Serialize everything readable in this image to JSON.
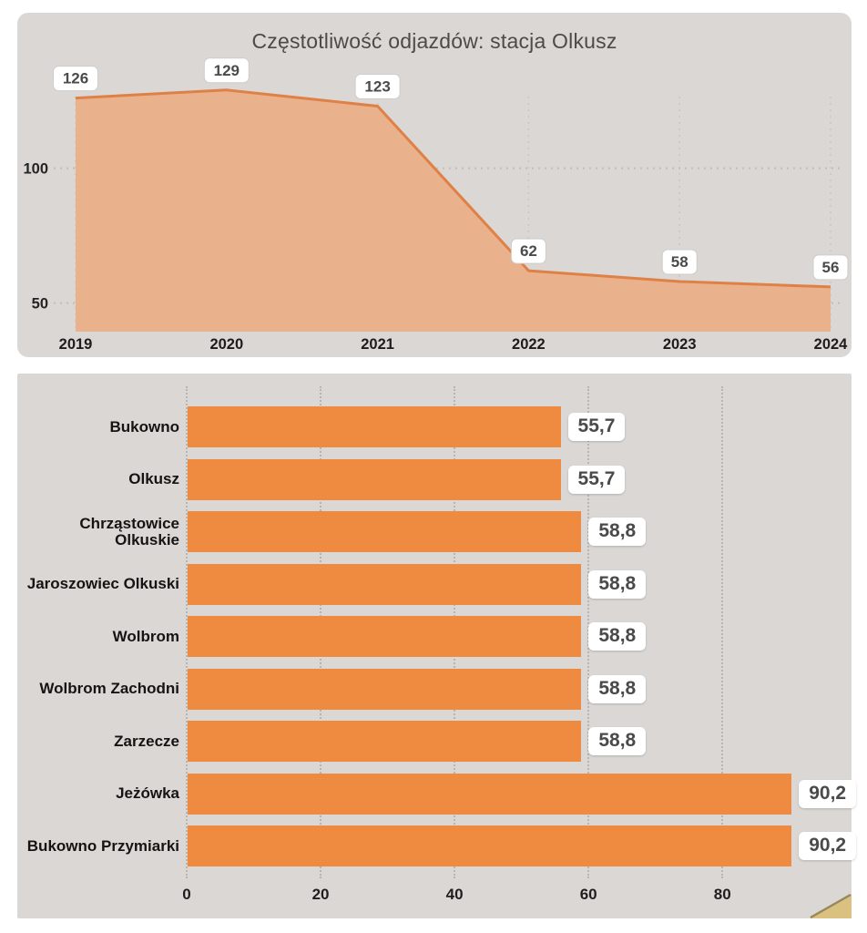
{
  "colors": {
    "panel_background": "#dad7d4",
    "bar_orange": "#ee8b40",
    "area_fill": "#e9b28d",
    "area_line": "#df8146",
    "grid_dots": "#c1bdb9",
    "label_chip_background": "#ffffff",
    "label_chip_text": "#4a4a4a",
    "axis_text": "#201e1c",
    "title_text": "#4d4a48",
    "corner_fold": "#dac17f"
  },
  "chart_data": [
    {
      "type": "area",
      "title": "Częstotliwość odjazdów: stacja Olkusz",
      "x": [
        "2019",
        "2020",
        "2021",
        "2022",
        "2023",
        "2024"
      ],
      "values": [
        126,
        129,
        123,
        62,
        58,
        56
      ],
      "data_labels": [
        "126",
        "129",
        "123",
        "62",
        "58",
        "56"
      ],
      "yticks": [
        50,
        100
      ],
      "ylim": [
        39.4,
        139.4
      ],
      "grid": true,
      "legend": "none",
      "xlabel": "",
      "ylabel": ""
    },
    {
      "type": "bar",
      "orientation": "horizontal",
      "categories": [
        "Bukowno",
        "Olkusz",
        "Chrząstowice Olkuskie",
        "Jaroszowiec Olkuski",
        "Wolbrom",
        "Wolbrom Zachodni",
        "Zarzecze",
        "Jeżówka",
        "Bukowno Przymiarki"
      ],
      "values": [
        55.7,
        55.7,
        58.8,
        58.8,
        58.8,
        58.8,
        58.8,
        90.2,
        90.2
      ],
      "data_labels": [
        "55,7",
        "55,7",
        "58,8",
        "58,8",
        "58,8",
        "58,8",
        "58,8",
        "90,2",
        "90,2"
      ],
      "xticks": [
        0,
        20,
        40,
        60,
        80
      ],
      "xlim": [
        0,
        99
      ],
      "grid": true,
      "legend": "none",
      "xlabel": "",
      "ylabel": ""
    }
  ]
}
